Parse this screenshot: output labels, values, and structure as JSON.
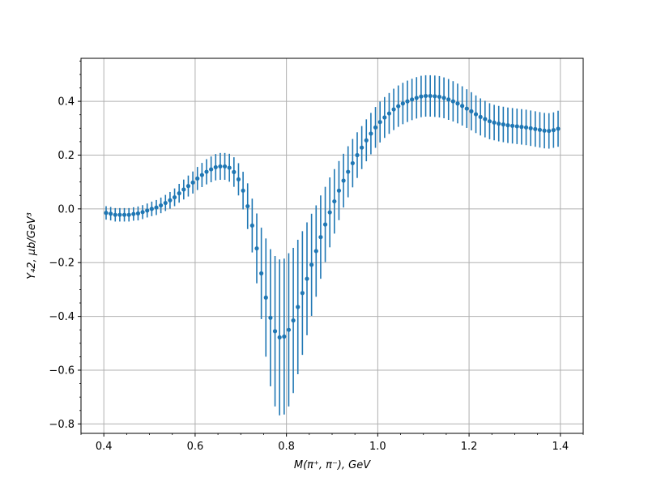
{
  "chart_data": {
    "type": "scatter",
    "style": "errorbar",
    "title": "",
    "xlabel": "M(π⁺, π⁻), GeV",
    "ylabel": "Y₄2, μb/GeV³",
    "xlim": [
      0.35,
      1.45
    ],
    "ylim": [
      -0.835,
      0.56
    ],
    "grid": true,
    "color": "#1f77b4",
    "xticks": [
      0.4,
      0.6,
      0.8,
      1.0,
      1.2,
      1.4
    ],
    "xtick_labels": [
      "0.4",
      "0.6",
      "0.8",
      "1.0",
      "1.2",
      "1.4"
    ],
    "yticks": [
      -0.8,
      -0.6,
      -0.4,
      -0.2,
      0.0,
      0.2,
      0.4
    ],
    "ytick_labels": [
      "−0.8",
      "−0.6",
      "−0.4",
      "−0.2",
      "0.0",
      "0.2",
      "0.4"
    ],
    "series": [
      {
        "x": [
          0.405,
          0.415,
          0.425,
          0.435,
          0.445,
          0.455,
          0.465,
          0.475,
          0.485,
          0.495,
          0.505,
          0.515,
          0.525,
          0.535,
          0.545,
          0.555,
          0.565,
          0.575,
          0.585,
          0.595,
          0.605,
          0.615,
          0.625,
          0.635,
          0.645,
          0.655,
          0.665,
          0.675,
          0.685,
          0.695,
          0.705,
          0.715,
          0.725,
          0.735,
          0.745,
          0.755,
          0.765,
          0.775,
          0.785,
          0.795,
          0.805,
          0.815,
          0.825,
          0.835,
          0.845,
          0.855,
          0.865,
          0.875,
          0.885,
          0.895,
          0.905,
          0.915,
          0.925,
          0.935,
          0.945,
          0.955,
          0.965,
          0.975,
          0.985,
          0.995,
          1.005,
          1.015,
          1.025,
          1.035,
          1.045,
          1.055,
          1.065,
          1.075,
          1.085,
          1.095,
          1.105,
          1.115,
          1.125,
          1.135,
          1.145,
          1.155,
          1.165,
          1.175,
          1.185,
          1.195,
          1.205,
          1.215,
          1.225,
          1.235,
          1.245,
          1.255,
          1.265,
          1.275,
          1.285,
          1.295,
          1.305,
          1.315,
          1.325,
          1.335,
          1.345,
          1.355,
          1.365,
          1.375,
          1.385,
          1.395
        ],
        "y": [
          -0.015,
          -0.018,
          -0.022,
          -0.022,
          -0.022,
          -0.022,
          -0.019,
          -0.017,
          -0.012,
          -0.006,
          0.0,
          0.005,
          0.013,
          0.022,
          0.032,
          0.043,
          0.058,
          0.072,
          0.085,
          0.098,
          0.113,
          0.126,
          0.138,
          0.147,
          0.155,
          0.158,
          0.158,
          0.153,
          0.137,
          0.11,
          0.068,
          0.01,
          -0.062,
          -0.147,
          -0.24,
          -0.33,
          -0.405,
          -0.455,
          -0.478,
          -0.475,
          -0.45,
          -0.415,
          -0.365,
          -0.313,
          -0.26,
          -0.208,
          -0.157,
          -0.105,
          -0.058,
          -0.013,
          0.028,
          0.068,
          0.105,
          0.138,
          0.17,
          0.2,
          0.228,
          0.255,
          0.28,
          0.303,
          0.323,
          0.34,
          0.355,
          0.37,
          0.382,
          0.392,
          0.4,
          0.407,
          0.413,
          0.418,
          0.42,
          0.42,
          0.419,
          0.417,
          0.413,
          0.407,
          0.4,
          0.392,
          0.383,
          0.373,
          0.363,
          0.352,
          0.342,
          0.334,
          0.326,
          0.321,
          0.317,
          0.314,
          0.311,
          0.309,
          0.307,
          0.305,
          0.303,
          0.3,
          0.297,
          0.294,
          0.291,
          0.29,
          0.293,
          0.298
        ],
        "err": [
          0.025,
          0.025,
          0.025,
          0.025,
          0.025,
          0.025,
          0.025,
          0.026,
          0.026,
          0.026,
          0.027,
          0.028,
          0.029,
          0.03,
          0.031,
          0.033,
          0.035,
          0.037,
          0.039,
          0.041,
          0.043,
          0.045,
          0.047,
          0.048,
          0.049,
          0.05,
          0.05,
          0.052,
          0.055,
          0.06,
          0.07,
          0.085,
          0.1,
          0.13,
          0.17,
          0.22,
          0.255,
          0.28,
          0.29,
          0.29,
          0.285,
          0.27,
          0.25,
          0.23,
          0.21,
          0.19,
          0.17,
          0.155,
          0.14,
          0.13,
          0.12,
          0.11,
          0.1,
          0.095,
          0.09,
          0.085,
          0.08,
          0.078,
          0.077,
          0.076,
          0.076,
          0.076,
          0.076,
          0.077,
          0.077,
          0.077,
          0.077,
          0.077,
          0.077,
          0.077,
          0.077,
          0.077,
          0.077,
          0.077,
          0.076,
          0.076,
          0.075,
          0.074,
          0.073,
          0.072,
          0.071,
          0.07,
          0.069,
          0.068,
          0.067,
          0.066,
          0.066,
          0.066,
          0.066,
          0.066,
          0.066,
          0.066,
          0.066,
          0.066,
          0.066,
          0.066,
          0.066,
          0.066,
          0.066,
          0.067
        ]
      }
    ]
  }
}
